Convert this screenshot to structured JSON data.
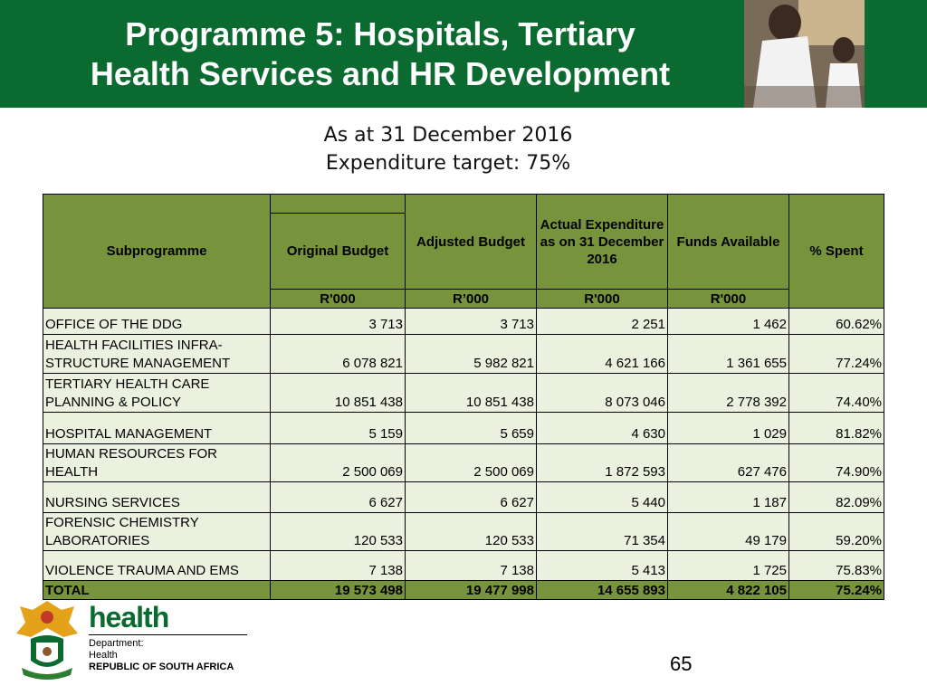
{
  "header": {
    "title": [
      "Programme 5: Hospitals, Tertiary",
      "Health Services and HR Development"
    ]
  },
  "subtitle": [
    "As at 31 December 2016",
    "Expenditure target: 75%"
  ],
  "table": {
    "columns": [
      "Subprogramme",
      "Original Budget",
      "Adjusted Budget",
      "Actual Expenditure as on 31 December 2016",
      "Funds Available",
      "% Spent"
    ],
    "units": [
      "R'000",
      "R’000",
      "R'000",
      "R'000"
    ],
    "rows": [
      [
        "OFFICE OF THE DDG",
        "3 713",
        "3 713",
        "2 251",
        "1 462",
        "60.62%"
      ],
      [
        "HEALTH FACILITIES INFRA-STRUCTURE MANAGEMENT",
        "6 078 821",
        "5 982 821",
        "4 621 166",
        "1 361 655",
        "77.24%"
      ],
      [
        "TERTIARY HEALTH CARE PLANNING & POLICY",
        "10 851 438",
        "10 851 438",
        "8 073 046",
        "2 778 392",
        "74.40%"
      ],
      [
        "HOSPITAL MANAGEMENT",
        "5 159",
        "5 659",
        "4 630",
        "1 029",
        "81.82%"
      ],
      [
        "HUMAN RESOURCES FOR HEALTH",
        "2 500 069",
        "2 500 069",
        "1 872 593",
        "627 476",
        "74.90%"
      ],
      [
        "NURSING SERVICES",
        "6 627",
        "6 627",
        "5 440",
        "1 187",
        "82.09%"
      ],
      [
        "FORENSIC CHEMISTRY LABORATORIES",
        "120 533",
        "120 533",
        "71 354",
        "49 179",
        "59.20%"
      ],
      [
        "VIOLENCE TRAUMA AND EMS",
        "7 138",
        "7 138",
        "5 413",
        "1 725",
        "75.83%"
      ]
    ],
    "total": [
      "TOTAL",
      "19 573 498",
      "19 477 998",
      "14 655 893",
      "4 822 105",
      "75.24%"
    ]
  },
  "footer": {
    "brand": "health",
    "department": [
      "Department:",
      "Health",
      "REPUBLIC OF SOUTH AFRICA"
    ],
    "page": "65"
  }
}
